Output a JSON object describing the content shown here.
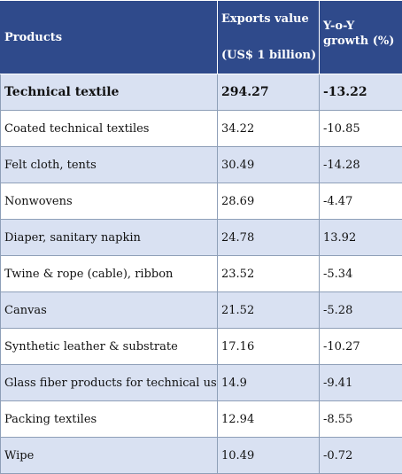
{
  "table": {
    "headers": {
      "products": "Products",
      "exports_line1": "Exports value",
      "exports_line2": "(US$ 1 billion)",
      "growth_line1": "Y-o-Y",
      "growth_line2": "growth (%)"
    },
    "rows": [
      {
        "product": "Technical textile",
        "exports": "294.27",
        "growth": "-13.22"
      },
      {
        "product": "Coated technical textiles",
        "exports": "34.22",
        "growth": "-10.85"
      },
      {
        "product": "Felt cloth, tents",
        "exports": "30.49",
        "growth": "-14.28"
      },
      {
        "product": "Nonwovens",
        "exports": "28.69",
        "growth": "-4.47"
      },
      {
        "product": "Diaper, sanitary napkin",
        "exports": "24.78",
        "growth": "13.92"
      },
      {
        "product": "Twine & rope (cable), ribbon",
        "exports": "23.52",
        "growth": "-5.34"
      },
      {
        "product": "Canvas",
        "exports": "21.52",
        "growth": "-5.28"
      },
      {
        "product": "Synthetic leather & substrate",
        "exports": "17.16",
        "growth": "-10.27"
      },
      {
        "product": "Glass fiber products for technical use",
        "exports": "14.9",
        "growth": "-9.41"
      },
      {
        "product": "Packing textiles",
        "exports": "12.94",
        "growth": "-8.55"
      },
      {
        "product": "Wipe",
        "exports": "10.49",
        "growth": "-0.72"
      }
    ]
  },
  "colors": {
    "header_bg": "#2f4a8b",
    "band_bg": "#d9e1f2",
    "border": "#8e9fb8"
  }
}
